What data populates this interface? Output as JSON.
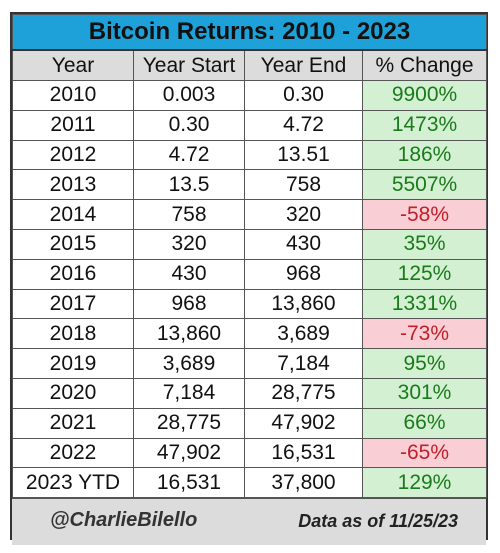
{
  "title": "Bitcoin Returns: 2010 - 2023",
  "columns": [
    "Year",
    "Year Start",
    "Year End",
    "% Change"
  ],
  "rows": [
    {
      "year": "2010",
      "start": "0.003",
      "end": "0.30",
      "change": "9900%",
      "sign": "pos"
    },
    {
      "year": "2011",
      "start": "0.30",
      "end": "4.72",
      "change": "1473%",
      "sign": "pos"
    },
    {
      "year": "2012",
      "start": "4.72",
      "end": "13.51",
      "change": "186%",
      "sign": "pos"
    },
    {
      "year": "2013",
      "start": "13.5",
      "end": "758",
      "change": "5507%",
      "sign": "pos"
    },
    {
      "year": "2014",
      "start": "758",
      "end": "320",
      "change": "-58%",
      "sign": "neg"
    },
    {
      "year": "2015",
      "start": "320",
      "end": "430",
      "change": "35%",
      "sign": "pos"
    },
    {
      "year": "2016",
      "start": "430",
      "end": "968",
      "change": "125%",
      "sign": "pos"
    },
    {
      "year": "2017",
      "start": "968",
      "end": "13,860",
      "change": "1331%",
      "sign": "pos"
    },
    {
      "year": "2018",
      "start": "13,860",
      "end": "3,689",
      "change": "-73%",
      "sign": "neg"
    },
    {
      "year": "2019",
      "start": "3,689",
      "end": "7,184",
      "change": "95%",
      "sign": "pos"
    },
    {
      "year": "2020",
      "start": "7,184",
      "end": "28,775",
      "change": "301%",
      "sign": "pos"
    },
    {
      "year": "2021",
      "start": "28,775",
      "end": "47,902",
      "change": "66%",
      "sign": "pos"
    },
    {
      "year": "2022",
      "start": "47,902",
      "end": "16,531",
      "change": "-65%",
      "sign": "neg"
    },
    {
      "year": "2023 YTD",
      "start": "16,531",
      "end": "37,800",
      "change": "129%",
      "sign": "pos"
    }
  ],
  "footer": {
    "handle": "@CharlieBilello",
    "as_of": "Data as of 11/25/23"
  },
  "colors": {
    "title_bg": "#1da1d8",
    "header_bg": "#dcdcdc",
    "positive_bg": "#d3f0d3",
    "positive_text": "#1b7a1b",
    "negative_bg": "#f9cfd5",
    "negative_text": "#c0202a"
  }
}
